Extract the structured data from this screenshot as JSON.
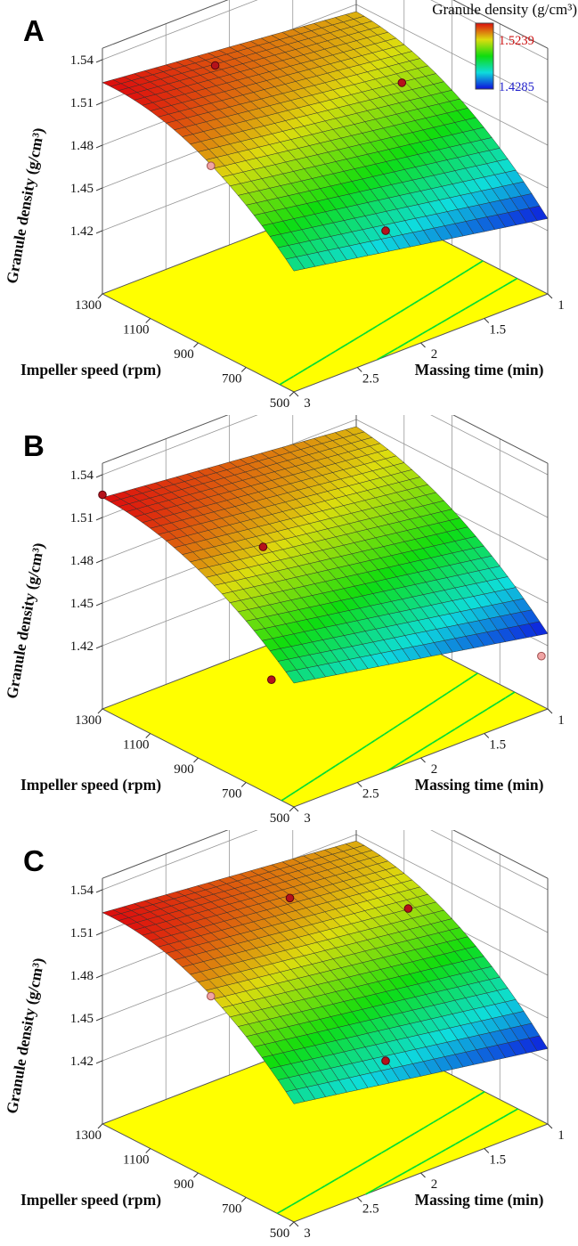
{
  "page": {
    "background": "#ffffff"
  },
  "legend": {
    "title": "Granule density (g/cm³)",
    "max_label": "1.5239",
    "min_label": "1.4285",
    "max_color": "#cc1111",
    "min_color": "#2222cc"
  },
  "chart_data": [
    {
      "type": "surface3d",
      "panel_label": "A",
      "x_axis": {
        "title": "Impeller speed (rpm)",
        "tick_labels": [
          "1300",
          "1100",
          "900",
          "700",
          "500"
        ],
        "tick_values": [
          1300,
          1100,
          900,
          700,
          500
        ],
        "range": [
          500,
          1300
        ]
      },
      "y_axis": {
        "title": "Massing time (min)",
        "tick_labels": [
          "3",
          "2.5",
          "2",
          "1.5",
          "1"
        ],
        "tick_values": [
          3,
          2.5,
          2,
          1.5,
          1
        ],
        "range": [
          1,
          3
        ]
      },
      "z_axis": {
        "title": "Granule density (g/cm³)",
        "tick_labels": [
          "1.42",
          "1.45",
          "1.48",
          "1.51",
          "1.54"
        ],
        "tick_values": [
          1.42,
          1.45,
          1.48,
          1.51,
          1.54
        ]
      },
      "surface": {
        "zmin": 1.4285,
        "zmax": 1.5239,
        "model": "z = c0 + c1*u + c2*u*u + c3*t + c4*u*t ; u=(speed-500)/800 , t=(time-1)/2",
        "coeffs": [
          1.4285,
          0.1464,
          -0.0699,
          0.032,
          -0.0131
        ]
      },
      "floor": {
        "color": "#ffff00",
        "contour_color": "#00dd33",
        "contour_levels": [
          1.45,
          1.47
        ]
      },
      "design_points": [
        {
          "speed": 1200,
          "time": 2.3,
          "dz": 0.004,
          "shade": "dark"
        },
        {
          "speed": 950,
          "time": 1.3,
          "dz": 0.003,
          "shade": "dark"
        },
        {
          "speed": 900,
          "time": 2.9,
          "dz": -0.012,
          "shade": "light"
        },
        {
          "speed": 700,
          "time": 1.9,
          "dz": -0.04,
          "shade": "dark"
        }
      ],
      "show_legend": true
    },
    {
      "type": "surface3d",
      "panel_label": "B",
      "x_axis": {
        "title": "Impeller speed (rpm)",
        "tick_labels": [
          "1300",
          "1100",
          "900",
          "700",
          "500"
        ],
        "tick_values": [
          1300,
          1100,
          900,
          700,
          500
        ],
        "range": [
          500,
          1300
        ]
      },
      "y_axis": {
        "title": "Massing time (min)",
        "tick_labels": [
          "3",
          "2.5",
          "2",
          "1.5",
          "1"
        ],
        "tick_values": [
          3,
          2.5,
          2,
          1.5,
          1
        ],
        "range": [
          1,
          3
        ]
      },
      "z_axis": {
        "title": "Granule density (g/cm³)",
        "tick_labels": [
          "1.42",
          "1.45",
          "1.48",
          "1.51",
          "1.54"
        ],
        "tick_values": [
          1.42,
          1.45,
          1.48,
          1.51,
          1.54
        ]
      },
      "surface": {
        "zmin": 1.4285,
        "zmax": 1.5239,
        "model": "z = c0 + c1*u + c2*u*u + c3*t + c4*u*t ; u=(speed-500)/800 , t=(time-1)/2",
        "coeffs": [
          1.4285,
          0.135,
          -0.0585,
          0.034,
          -0.0151
        ]
      },
      "floor": {
        "color": "#ffff00",
        "contour_color": "#00dd33",
        "contour_levels": [
          1.45,
          1.47
        ]
      },
      "design_points": [
        {
          "speed": 1300,
          "time": 3.0,
          "dz": 0.002,
          "shade": "dark"
        },
        {
          "speed": 1000,
          "time": 2.3,
          "dz": -0.015,
          "shade": "dark"
        },
        {
          "speed": 700,
          "time": 2.8,
          "dz": -0.045,
          "shade": "dark"
        },
        {
          "speed": 500,
          "time": 1.05,
          "dz": -0.015,
          "shade": "light"
        }
      ],
      "show_legend": false
    },
    {
      "type": "surface3d",
      "panel_label": "C",
      "x_axis": {
        "title": "Impeller speed (rpm)",
        "tick_labels": [
          "1300",
          "1100",
          "900",
          "700",
          "500"
        ],
        "tick_values": [
          1300,
          1100,
          900,
          700,
          500
        ],
        "range": [
          500,
          1300
        ]
      },
      "y_axis": {
        "title": "Massing time (min)",
        "tick_labels": [
          "3",
          "2.5",
          "2",
          "1.5",
          "1"
        ],
        "tick_values": [
          3,
          2.5,
          2,
          1.5,
          1
        ],
        "range": [
          1,
          3
        ]
      },
      "z_axis": {
        "title": "Granule density (g/cm³)",
        "tick_labels": [
          "1.42",
          "1.45",
          "1.48",
          "1.51",
          "1.54"
        ],
        "tick_values": [
          1.42,
          1.45,
          1.48,
          1.51,
          1.54
        ]
      },
      "surface": {
        "zmin": 1.4285,
        "zmax": 1.5239,
        "model": "z = c0 + c1*u + c2*u*u + c3*t + c4*u*t ; u=(speed-500)/800 , t=(time-1)/2",
        "coeffs": [
          1.4285,
          0.15,
          -0.073,
          0.03,
          -0.0116
        ]
      },
      "floor": {
        "color": "#ffff00",
        "contour_color": "#00dd33",
        "contour_levels": [
          1.45,
          1.47
        ]
      },
      "design_points": [
        {
          "speed": 1100,
          "time": 1.9,
          "dz": 0.004,
          "shade": "dark"
        },
        {
          "speed": 950,
          "time": 1.25,
          "dz": 0.004,
          "shade": "dark"
        },
        {
          "speed": 900,
          "time": 2.9,
          "dz": -0.012,
          "shade": "light"
        },
        {
          "speed": 700,
          "time": 1.9,
          "dz": -0.04,
          "shade": "dark"
        }
      ],
      "show_legend": false
    }
  ]
}
